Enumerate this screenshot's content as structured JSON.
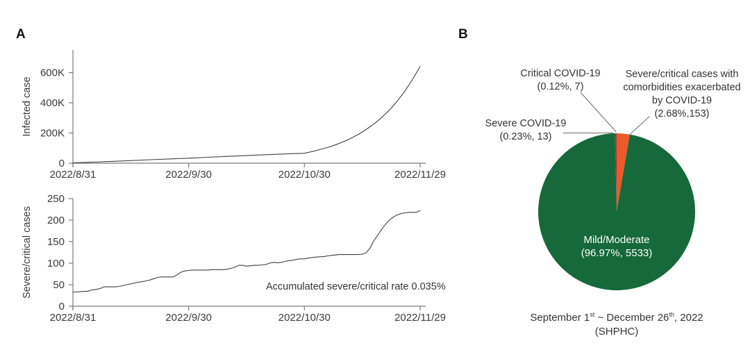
{
  "panel_a": {
    "label": "A"
  },
  "panel_b": {
    "label": "B"
  },
  "colors": {
    "mild_green": "#15693a",
    "comorbid_orange": "#eb5a28",
    "severe_dark_red": "#9e3a38",
    "critical_dark_red": "#7c2d2b",
    "axis_gray": "#7b7b7b",
    "curve_gray": "#3f3f3f",
    "text_gray": "#3a3a3a"
  },
  "chart_data": [
    {
      "id": "infected",
      "type": "line",
      "title": "",
      "xlabel": "",
      "ylabel": "Infected case",
      "x_unit": "days since 2022/8/31",
      "y_unit": "thousand cases",
      "xlim_days": [
        0,
        90
      ],
      "ylim": [
        0,
        750
      ],
      "grid": false,
      "yticks": [
        {
          "v": 0,
          "label": "0"
        },
        {
          "v": 200,
          "label": "200K"
        },
        {
          "v": 400,
          "label": "400K"
        },
        {
          "v": 600,
          "label": "600K"
        }
      ],
      "xticks": [
        {
          "day": 0,
          "label": "2022/8/31"
        },
        {
          "day": 30,
          "label": "2022/9/30"
        },
        {
          "day": 60,
          "label": "2022/10/30"
        },
        {
          "day": 90,
          "label": "2022/11/29"
        }
      ],
      "series": [
        {
          "name": "Infected case",
          "points": [
            [
              0,
              2
            ],
            [
              5,
              7
            ],
            [
              10,
              12
            ],
            [
              15,
              17
            ],
            [
              20,
              23
            ],
            [
              25,
              28
            ],
            [
              30,
              33
            ],
            [
              35,
              39
            ],
            [
              40,
              45
            ],
            [
              45,
              50
            ],
            [
              50,
              56
            ],
            [
              55,
              61
            ],
            [
              60,
              66
            ],
            [
              62,
              77
            ],
            [
              64,
              90
            ],
            [
              66,
              104
            ],
            [
              68,
              121
            ],
            [
              70,
              141
            ],
            [
              72,
              164
            ],
            [
              74,
              191
            ],
            [
              76,
              223
            ],
            [
              78,
              259
            ],
            [
              80,
              302
            ],
            [
              82,
              351
            ],
            [
              84,
              409
            ],
            [
              86,
              476
            ],
            [
              88,
              554
            ],
            [
              90,
              640
            ]
          ]
        }
      ]
    },
    {
      "id": "severe",
      "type": "line",
      "title": "",
      "xlabel": "",
      "ylabel": "Severe/critical cases",
      "x_unit": "days since 2022/8/31",
      "y_unit": "cases",
      "xlim_days": [
        0,
        90
      ],
      "ylim": [
        0,
        250
      ],
      "grid": false,
      "annotation": "Accumulated severe/critical rate 0.035%",
      "yticks": [
        {
          "v": 0,
          "label": "0"
        },
        {
          "v": 50,
          "label": "50"
        },
        {
          "v": 100,
          "label": "100"
        },
        {
          "v": 150,
          "label": "150"
        },
        {
          "v": 200,
          "label": "200"
        },
        {
          "v": 250,
          "label": "250"
        }
      ],
      "xticks": [
        {
          "day": 0,
          "label": "2022/8/31"
        },
        {
          "day": 30,
          "label": "2022/9/30"
        },
        {
          "day": 60,
          "label": "2022/10/30"
        },
        {
          "day": 90,
          "label": "2022/11/29"
        }
      ],
      "series": [
        {
          "name": "Severe/critical cases",
          "points": [
            [
              0,
              33
            ],
            [
              1,
              33
            ],
            [
              2,
              34
            ],
            [
              4,
              35
            ],
            [
              5,
              38
            ],
            [
              6,
              39
            ],
            [
              7,
              41
            ],
            [
              8,
              45
            ],
            [
              11,
              45
            ],
            [
              12,
              46
            ],
            [
              13,
              48
            ],
            [
              14,
              50
            ],
            [
              15,
              52
            ],
            [
              16,
              54
            ],
            [
              17,
              56
            ],
            [
              18,
              57
            ],
            [
              19,
              59
            ],
            [
              20,
              61
            ],
            [
              21,
              64
            ],
            [
              22,
              67
            ],
            [
              23,
              68
            ],
            [
              26,
              68
            ],
            [
              27,
              73
            ],
            [
              28,
              79
            ],
            [
              29,
              82
            ],
            [
              30,
              83
            ],
            [
              31,
              84
            ],
            [
              35,
              84
            ],
            [
              36,
              85
            ],
            [
              39,
              85
            ],
            [
              40,
              86
            ],
            [
              41,
              88
            ],
            [
              42,
              91
            ],
            [
              43,
              95
            ],
            [
              44,
              95
            ],
            [
              45,
              93
            ],
            [
              46,
              94
            ],
            [
              47,
              95
            ],
            [
              48,
              95
            ],
            [
              49,
              96
            ],
            [
              50,
              97
            ],
            [
              51,
              100
            ],
            [
              52,
              102
            ],
            [
              53,
              101
            ],
            [
              54,
              102
            ],
            [
              55,
              104
            ],
            [
              56,
              106
            ],
            [
              57,
              107
            ],
            [
              58,
              109
            ],
            [
              59,
              110
            ],
            [
              60,
              110
            ],
            [
              61,
              112
            ],
            [
              62,
              113
            ],
            [
              63,
              114
            ],
            [
              64,
              115
            ],
            [
              65,
              115
            ],
            [
              66,
              117
            ],
            [
              67,
              118
            ],
            [
              68,
              119
            ],
            [
              69,
              120
            ],
            [
              74,
              120
            ],
            [
              75,
              121
            ],
            [
              76,
              124
            ],
            [
              77,
              135
            ],
            [
              78,
              152
            ],
            [
              79,
              165
            ],
            [
              80,
              178
            ],
            [
              81,
              190
            ],
            [
              82,
              200
            ],
            [
              83,
              207
            ],
            [
              84,
              212
            ],
            [
              85,
              215
            ],
            [
              86,
              217
            ],
            [
              87,
              218
            ],
            [
              89,
              218
            ],
            [
              90,
              222
            ]
          ]
        }
      ]
    },
    {
      "id": "pie",
      "type": "pie",
      "start_angle_deg": -1.26,
      "slices": [
        {
          "name": "Severe COVID-19",
          "pct": 0.23,
          "count": 13,
          "color": "#9e3a38",
          "label_lines": [
            "Severe COVID-19",
            "(0.23%, 13)"
          ]
        },
        {
          "name": "Critical COVID-19",
          "pct": 0.12,
          "count": 7,
          "color": "#7c2d2b",
          "label_lines": [
            "Critical COVID-19",
            "(0.12%, 7)"
          ]
        },
        {
          "name": "Severe/critical cases with comorbidities exacerbated by COVID-19",
          "pct": 2.68,
          "count": 153,
          "color": "#eb5a28",
          "label_lines": [
            "Severe/critical cases with",
            "comorbidities exacerbated",
            "by COVID-19",
            "(2.68%,153)"
          ]
        },
        {
          "name": "Mild/Moderate",
          "pct": 96.97,
          "count": 5533,
          "color": "#15693a",
          "label_lines": [
            "Mild/Moderate",
            "(96.97%, 5533)"
          ]
        }
      ],
      "caption": {
        "line1_parts": [
          "September 1",
          "st",
          " ~ December 26",
          "th",
          ", 2022"
        ],
        "line2": "(SHPHC)"
      }
    }
  ]
}
